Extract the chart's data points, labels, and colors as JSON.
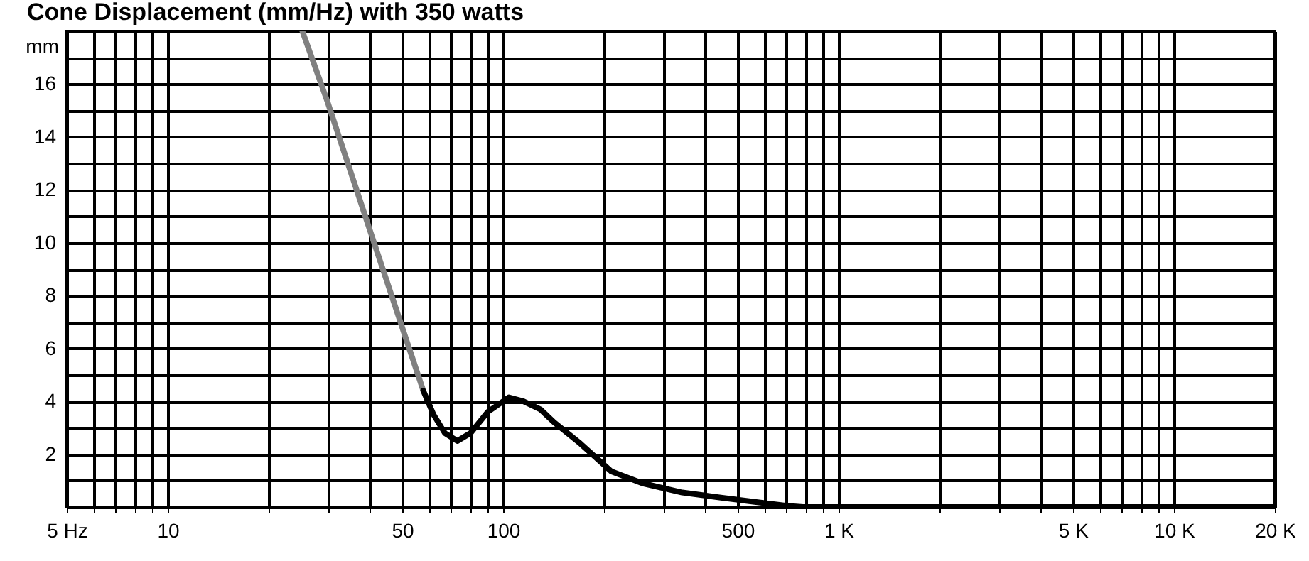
{
  "chart_data": {
    "type": "line",
    "title": "Cone Displacement (mm/Hz) with 350 watts",
    "ylabel": "mm",
    "log": "x",
    "grid": true,
    "legend": false,
    "marker": "none",
    "line_style": "solid",
    "xlim": [
      5,
      20000
    ],
    "ylim": [
      0,
      18
    ],
    "xticks": [
      {
        "value": 5,
        "label": "5 Hz"
      },
      {
        "value": 6,
        "label": null
      },
      {
        "value": 7,
        "label": null
      },
      {
        "value": 8,
        "label": null
      },
      {
        "value": 9,
        "label": null
      },
      10,
      {
        "value": 20,
        "label": null
      },
      {
        "value": 30,
        "label": null
      },
      {
        "value": 40,
        "label": null
      },
      50,
      {
        "value": 60,
        "label": null
      },
      {
        "value": 70,
        "label": null
      },
      {
        "value": 80,
        "label": null
      },
      {
        "value": 90,
        "label": null
      },
      100,
      {
        "value": 200,
        "label": null
      },
      {
        "value": 300,
        "label": null
      },
      {
        "value": 400,
        "label": null
      },
      500,
      {
        "value": 600,
        "label": null
      },
      {
        "value": 700,
        "label": null
      },
      {
        "value": 800,
        "label": null
      },
      {
        "value": 900,
        "label": null
      },
      {
        "value": 1000,
        "label": "1 K"
      },
      {
        "value": 2000,
        "label": null
      },
      {
        "value": 3000,
        "label": null
      },
      {
        "value": 4000,
        "label": null
      },
      {
        "value": 5000,
        "label": "5 K"
      },
      {
        "value": 6000,
        "label": null
      },
      {
        "value": 7000,
        "label": null
      },
      {
        "value": 8000,
        "label": null
      },
      {
        "value": 9000,
        "label": null
      },
      {
        "value": 10000,
        "label": "10 K"
      },
      {
        "value": 20000,
        "label": "20 K"
      }
    ],
    "yticks": [
      {
        "value": 1,
        "label": null
      },
      2,
      {
        "value": 3,
        "label": null
      },
      4,
      {
        "value": 5,
        "label": null
      },
      6,
      {
        "value": 7,
        "label": null
      },
      8,
      {
        "value": 9,
        "label": null
      },
      10,
      {
        "value": 11,
        "label": null
      },
      12,
      {
        "value": 13,
        "label": null
      },
      14,
      {
        "value": 15,
        "label": null
      },
      16,
      {
        "value": 17,
        "label": null
      }
    ],
    "series": [
      {
        "color": "#808080",
        "x": [
          25.2,
          30,
          40,
          50,
          57.8
        ],
        "values": [
          18,
          15.3,
          10.5,
          6.8,
          4.4
        ]
      },
      {
        "color": "#000000",
        "x": [
          57.8,
          62,
          67,
          73,
          80,
          90,
          104,
          115,
          129,
          142,
          170,
          210,
          260,
          342,
          450,
          557,
          700,
          783,
          20000
        ],
        "values": [
          4.4,
          3.5,
          2.8,
          2.5,
          2.8,
          3.6,
          4.15,
          4.0,
          3.7,
          3.2,
          2.4,
          1.35,
          0.9,
          0.55,
          0.35,
          0.2,
          0.05,
          0,
          0
        ]
      }
    ]
  }
}
